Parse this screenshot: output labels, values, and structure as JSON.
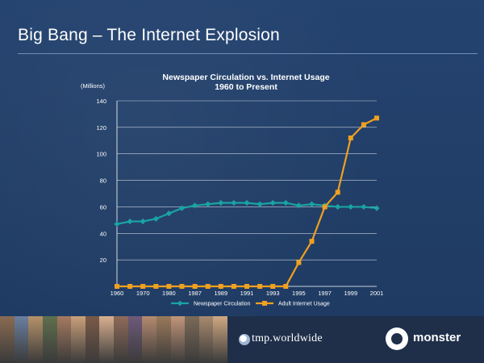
{
  "slide": {
    "title": "Big Bang – The Internet Explosion"
  },
  "footer": {
    "logo_left": "tmp.worldwide",
    "logo_right": "monster"
  },
  "colors": {
    "newspaper": "#1aa3a3",
    "internet": "#f0a020",
    "grid": "#ffffff",
    "background": "#23426e"
  },
  "chart_data": {
    "type": "line",
    "title": "Newspaper Circulation vs. Internet Usage",
    "subtitle": "1960 to Present",
    "xlabel": "",
    "ylabel": "(Millions)",
    "ylim": [
      0,
      140
    ],
    "yticks": [
      20,
      40,
      60,
      80,
      100,
      120,
      140
    ],
    "grid": true,
    "legend_position": "bottom",
    "x": [
      "1960",
      "1965",
      "1970",
      "1975",
      "1980",
      "1985",
      "1987",
      "1988",
      "1989",
      "1990",
      "1991",
      "1992",
      "1993",
      "1994",
      "1995",
      "1996",
      "1997",
      "1998",
      "1999",
      "2000",
      "2001"
    ],
    "xtick_labels": [
      "1960",
      "1970",
      "1980",
      "1987",
      "1989",
      "1991",
      "1993",
      "1995",
      "1997",
      "1999",
      "2001"
    ],
    "series": [
      {
        "name": "Newspaper Circulation",
        "values": [
          47,
          49,
          49,
          51,
          55,
          59,
          61,
          62,
          63,
          63,
          63,
          62,
          63,
          63,
          61,
          62,
          61,
          60,
          60,
          60,
          59
        ]
      },
      {
        "name": "Adult Internet Usage",
        "values": [
          0,
          0,
          0,
          0,
          0,
          0,
          0,
          0,
          0,
          0,
          0,
          0,
          0,
          0,
          18,
          34,
          60,
          71,
          112,
          122,
          127
        ]
      }
    ]
  }
}
